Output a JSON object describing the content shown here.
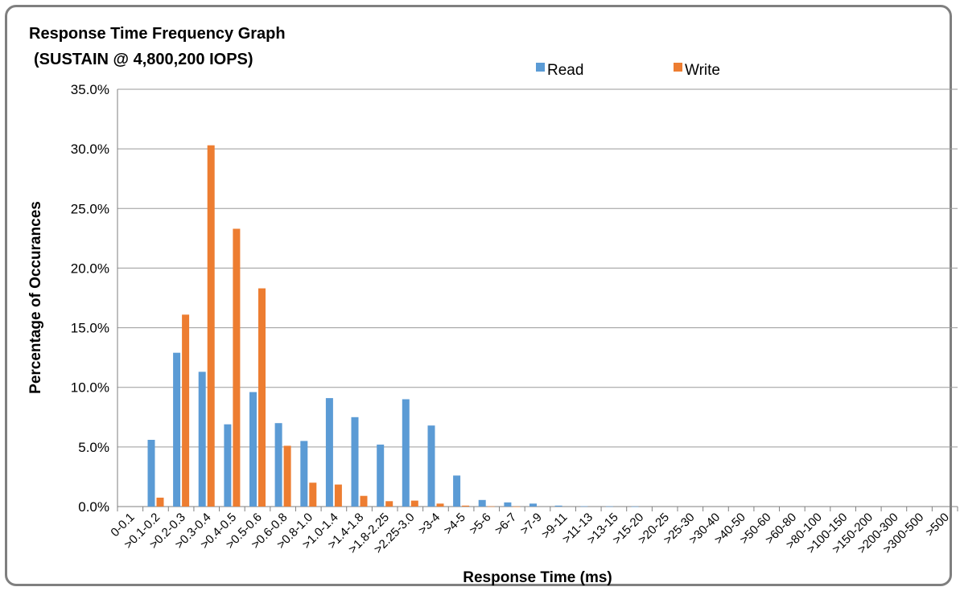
{
  "chart_data": {
    "type": "bar",
    "title": "Response Time Frequency Graph",
    "subtitle": "(SUSTAIN @ 4,800,200 IOPS)",
    "xlabel": "Response Time (ms)",
    "ylabel": "Percentage of Occurances",
    "ylim": [
      0,
      35
    ],
    "yticks": [
      "0.0%",
      "5.0%",
      "10.0%",
      "15.0%",
      "20.0%",
      "25.0%",
      "30.0%",
      "35.0%"
    ],
    "grid": true,
    "legend_position": "top-center",
    "categories": [
      "0-0.1",
      ">0.1-0.2",
      ">0.2-0.3",
      ">0.3-0.4",
      ">0.4-0.5",
      ">0.5-0.6",
      ">0.6-0.8",
      ">0.8-1.0",
      ">1.0-1.4",
      ">1.4-1.8",
      ">1.8-2.25",
      ">2.25-3.0",
      ">3-4",
      ">4-5",
      ">5-6",
      ">6-7",
      ">7-9",
      ">9-11",
      ">11-13",
      ">13-15",
      ">15-20",
      ">20-25",
      ">25-30",
      ">30-40",
      ">40-50",
      ">50-60",
      ">60-80",
      ">80-100",
      ">100-150",
      ">150-200",
      ">200-300",
      ">300-500",
      ">500"
    ],
    "series": [
      {
        "name": "Read",
        "color": "#5b9bd5",
        "values": [
          0,
          5.6,
          12.9,
          11.3,
          6.9,
          9.6,
          7.0,
          5.5,
          9.1,
          7.5,
          5.2,
          9.0,
          6.8,
          2.6,
          0.55,
          0.35,
          0.25,
          0.08,
          0.03,
          0.02,
          0.01,
          0,
          0,
          0,
          0,
          0,
          0,
          0,
          0,
          0,
          0,
          0,
          0
        ]
      },
      {
        "name": "Write",
        "color": "#ed7d31",
        "values": [
          0,
          0.75,
          16.1,
          30.3,
          23.3,
          18.3,
          5.1,
          2.0,
          1.85,
          0.9,
          0.45,
          0.5,
          0.25,
          0.08,
          0.02,
          0.01,
          0,
          0,
          0,
          0,
          0,
          0,
          0,
          0,
          0,
          0,
          0,
          0,
          0,
          0,
          0,
          0,
          0
        ]
      }
    ]
  }
}
